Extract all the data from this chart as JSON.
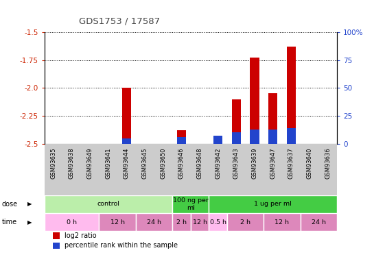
{
  "title": "GDS1753 / 17587",
  "samples": [
    "GSM93635",
    "GSM93638",
    "GSM93649",
    "GSM93641",
    "GSM93644",
    "GSM93645",
    "GSM93650",
    "GSM93646",
    "GSM93648",
    "GSM93642",
    "GSM93643",
    "GSM93639",
    "GSM93647",
    "GSM93637",
    "GSM93640",
    "GSM93636"
  ],
  "log2_ratio": [
    0.0,
    0.0,
    0.0,
    0.0,
    -2.0,
    0.0,
    0.0,
    -2.38,
    0.0,
    -2.48,
    -2.1,
    -1.73,
    -2.05,
    -1.63,
    0.0,
    0.0
  ],
  "percentile_rank": [
    0,
    0,
    0,
    0,
    5,
    0,
    0,
    6,
    0,
    7,
    10,
    13,
    13,
    14,
    0,
    0
  ],
  "ylim_left": [
    -2.5,
    -1.5
  ],
  "ylim_right": [
    0,
    100
  ],
  "yticks_left": [
    -2.5,
    -2.25,
    -2.0,
    -1.75,
    -1.5
  ],
  "yticks_right": [
    0,
    25,
    50,
    75,
    100
  ],
  "ytick_labels_right": [
    "0",
    "25",
    "50",
    "75",
    "100%"
  ],
  "bar_color_red": "#cc0000",
  "bar_color_blue": "#2244cc",
  "bg_color": "#ffffff",
  "left_tick_color": "#cc2200",
  "right_tick_color": "#2244cc",
  "title_color": "#444444",
  "dose_groups": [
    {
      "label": "control",
      "start": 0,
      "end": 6,
      "color": "#bbeeaa"
    },
    {
      "label": "100 ng per\nml",
      "start": 7,
      "end": 8,
      "color": "#44cc44"
    },
    {
      "label": "1 ug per ml",
      "start": 9,
      "end": 15,
      "color": "#44cc44"
    }
  ],
  "time_groups": [
    {
      "label": "0 h",
      "start": 0,
      "end": 2,
      "color": "#ffbbee"
    },
    {
      "label": "12 h",
      "start": 3,
      "end": 4,
      "color": "#dd88bb"
    },
    {
      "label": "24 h",
      "start": 5,
      "end": 6,
      "color": "#dd88bb"
    },
    {
      "label": "2 h",
      "start": 7,
      "end": 7,
      "color": "#dd88bb"
    },
    {
      "label": "12 h",
      "start": 8,
      "end": 8,
      "color": "#dd88bb"
    },
    {
      "label": "0.5 h",
      "start": 9,
      "end": 9,
      "color": "#ffbbee"
    },
    {
      "label": "2 h",
      "start": 10,
      "end": 11,
      "color": "#dd88bb"
    },
    {
      "label": "12 h",
      "start": 12,
      "end": 13,
      "color": "#dd88bb"
    },
    {
      "label": "24 h",
      "start": 14,
      "end": 15,
      "color": "#dd88bb"
    }
  ],
  "legend_items": [
    {
      "label": "log2 ratio",
      "color": "#cc0000"
    },
    {
      "label": "percentile rank within the sample",
      "color": "#2244cc"
    }
  ],
  "sample_bg": "#cccccc",
  "bar_width": 0.5
}
